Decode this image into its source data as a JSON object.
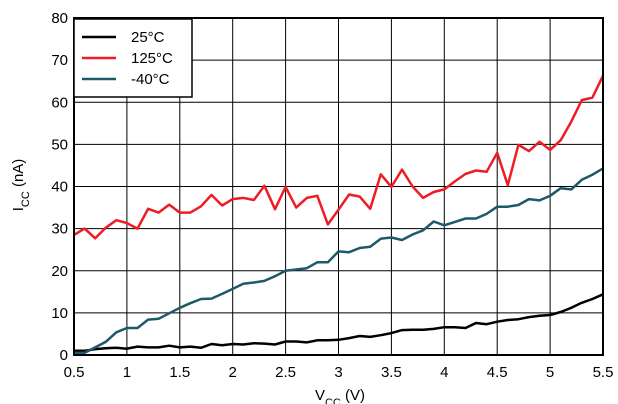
{
  "chart_data": {
    "type": "line",
    "xlabel": {
      "main": "V",
      "sub": "CC",
      "unit": " (V)"
    },
    "ylabel": {
      "main": "I",
      "sub": "CC",
      "unit": " (nA)"
    },
    "xlim": [
      0.5,
      5.5
    ],
    "ylim": [
      0,
      80
    ],
    "x_ticks": [
      0.5,
      1,
      1.5,
      2,
      2.5,
      3,
      3.5,
      4,
      4.5,
      5,
      5.5
    ],
    "x_tick_labels": [
      "0.5",
      "1",
      "1.5",
      "2",
      "2.5",
      "3",
      "3.5",
      "4",
      "4.5",
      "5",
      "5.5"
    ],
    "y_ticks": [
      0,
      10,
      20,
      30,
      40,
      50,
      60,
      70,
      80
    ],
    "y_tick_labels": [
      "0",
      "10",
      "20",
      "30",
      "40",
      "50",
      "60",
      "70",
      "80"
    ],
    "grid": true,
    "legend_position": "top-left",
    "series": [
      {
        "name": "25°C",
        "color": "#000000",
        "x": [
          0.5,
          0.6,
          0.7,
          0.8,
          0.9,
          1.0,
          1.1,
          1.2,
          1.3,
          1.4,
          1.5,
          1.6,
          1.7,
          1.8,
          1.9,
          2.0,
          2.1,
          2.2,
          2.3,
          2.4,
          2.5,
          2.6,
          2.7,
          2.8,
          2.9,
          3.0,
          3.1,
          3.2,
          3.3,
          3.4,
          3.5,
          3.6,
          3.7,
          3.8,
          3.9,
          4.0,
          4.1,
          4.2,
          4.3,
          4.4,
          4.5,
          4.6,
          4.7,
          4.8,
          4.9,
          5.0,
          5.1,
          5.2,
          5.3,
          5.4,
          5.5
        ],
        "y": [
          1.0,
          1.0,
          1.4,
          1.6,
          1.7,
          1.5,
          2.0,
          1.8,
          1.8,
          2.2,
          1.8,
          2.0,
          1.7,
          2.6,
          2.3,
          2.6,
          2.5,
          2.8,
          2.7,
          2.5,
          3.2,
          3.2,
          3.0,
          3.5,
          3.5,
          3.6,
          4.0,
          4.5,
          4.3,
          4.7,
          5.2,
          5.9,
          6.0,
          6.0,
          6.2,
          6.6,
          6.6,
          6.4,
          7.6,
          7.3,
          7.9,
          8.3,
          8.5,
          9.0,
          9.3,
          9.5,
          10.2,
          11.2,
          12.4,
          13.3,
          14.4
        ]
      },
      {
        "name": "125°C",
        "color": "#ee1c25",
        "x": [
          0.5,
          0.6,
          0.7,
          0.8,
          0.9,
          1.0,
          1.1,
          1.2,
          1.3,
          1.4,
          1.5,
          1.6,
          1.7,
          1.8,
          1.9,
          2.0,
          2.1,
          2.2,
          2.3,
          2.4,
          2.5,
          2.6,
          2.7,
          2.8,
          2.9,
          3.0,
          3.1,
          3.2,
          3.3,
          3.4,
          3.5,
          3.6,
          3.7,
          3.8,
          3.9,
          4.0,
          4.1,
          4.2,
          4.3,
          4.4,
          4.5,
          4.6,
          4.7,
          4.8,
          4.9,
          5.0,
          5.1,
          5.2,
          5.3,
          5.4,
          5.5
        ],
        "y": [
          28.5,
          30.0,
          27.7,
          30.2,
          32.0,
          31.3,
          30.0,
          34.7,
          33.8,
          35.7,
          33.8,
          33.8,
          35.3,
          38.0,
          35.5,
          37.0,
          37.3,
          36.8,
          40.2,
          34.6,
          39.9,
          35.0,
          37.3,
          37.8,
          31.0,
          34.5,
          38.1,
          37.6,
          34.7,
          42.9,
          39.9,
          44.0,
          40.0,
          37.3,
          38.7,
          39.3,
          41.2,
          43.0,
          43.8,
          43.5,
          48.0,
          40.3,
          49.9,
          48.4,
          50.6,
          48.7,
          51.0,
          55.4,
          60.5,
          61.1,
          66.3
        ]
      },
      {
        "name": "-40°C",
        "color": "#1c5a6a",
        "x": [
          0.5,
          0.6,
          0.7,
          0.8,
          0.9,
          1.0,
          1.1,
          1.2,
          1.3,
          1.4,
          1.5,
          1.6,
          1.7,
          1.8,
          1.9,
          2.0,
          2.1,
          2.2,
          2.3,
          2.4,
          2.5,
          2.6,
          2.7,
          2.8,
          2.9,
          3.0,
          3.1,
          3.2,
          3.3,
          3.4,
          3.5,
          3.6,
          3.7,
          3.8,
          3.9,
          4.0,
          4.1,
          4.2,
          4.3,
          4.4,
          4.5,
          4.6,
          4.7,
          4.8,
          4.9,
          5.0,
          5.1,
          5.2,
          5.3,
          5.4,
          5.5
        ],
        "y": [
          0.5,
          0.5,
          1.8,
          3.1,
          5.4,
          6.4,
          6.4,
          8.4,
          8.6,
          9.9,
          11.2,
          12.3,
          13.3,
          13.4,
          14.5,
          15.7,
          16.9,
          17.2,
          17.6,
          18.7,
          20.0,
          20.3,
          20.6,
          22.0,
          22.0,
          24.6,
          24.4,
          25.4,
          25.7,
          27.6,
          27.9,
          27.3,
          28.6,
          29.6,
          31.7,
          30.8,
          31.6,
          32.4,
          32.4,
          33.5,
          35.2,
          35.2,
          35.6,
          37.0,
          36.7,
          37.8,
          39.6,
          39.3,
          41.6,
          42.8,
          44.3
        ]
      }
    ]
  }
}
